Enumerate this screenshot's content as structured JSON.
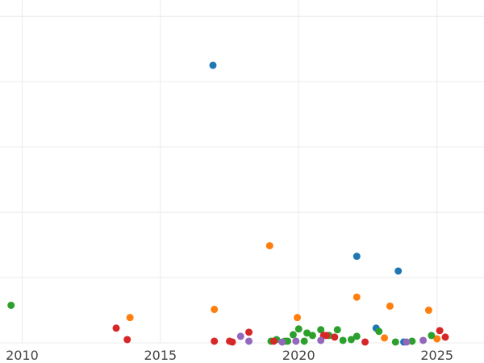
{
  "chart_data": {
    "type": "scatter",
    "title": "",
    "xlabel": "",
    "ylabel": "",
    "xlim": [
      2009.2,
      2026.7
    ],
    "ylim": [
      0,
      420
    ],
    "xticks": [
      2010,
      2015,
      2020,
      2025
    ],
    "ygrid": [
      0,
      80,
      160,
      240,
      320,
      400
    ],
    "grid": true,
    "legend": "none",
    "series": [
      {
        "color": "#1f77b4",
        "points": [
          [
            2016.9,
            340
          ],
          [
            2022.1,
            106
          ],
          [
            2023.6,
            88
          ],
          [
            2022.8,
            18
          ],
          [
            2023.8,
            1
          ]
        ]
      },
      {
        "color": "#ff7f0e",
        "points": [
          [
            2013.9,
            31
          ],
          [
            2016.95,
            41
          ],
          [
            2018.95,
            119
          ],
          [
            2019.95,
            31
          ],
          [
            2022.1,
            56
          ],
          [
            2023.3,
            45
          ],
          [
            2024.7,
            40
          ],
          [
            2023.1,
            6
          ],
          [
            2025.0,
            5
          ]
        ]
      },
      {
        "color": "#2ca02c",
        "points": [
          [
            2009.6,
            46
          ],
          [
            2019.0,
            2
          ],
          [
            2019.2,
            4
          ],
          [
            2019.6,
            2
          ],
          [
            2019.8,
            10
          ],
          [
            2020.0,
            17
          ],
          [
            2020.3,
            12
          ],
          [
            2020.5,
            9
          ],
          [
            2020.8,
            16
          ],
          [
            2021.1,
            9
          ],
          [
            2021.4,
            16
          ],
          [
            2021.6,
            3
          ],
          [
            2021.9,
            4
          ],
          [
            2022.1,
            8
          ],
          [
            2022.9,
            14
          ],
          [
            2023.5,
            1
          ],
          [
            2024.1,
            2
          ],
          [
            2024.8,
            9
          ],
          [
            2020.2,
            2
          ],
          [
            2019.5,
            2
          ]
        ]
      },
      {
        "color": "#d62728",
        "points": [
          [
            2013.4,
            18
          ],
          [
            2013.8,
            4
          ],
          [
            2016.95,
            2
          ],
          [
            2017.5,
            2
          ],
          [
            2017.6,
            1
          ],
          [
            2018.2,
            13
          ],
          [
            2019.1,
            2
          ],
          [
            2020.9,
            9
          ],
          [
            2021.0,
            9
          ],
          [
            2021.3,
            7
          ],
          [
            2022.4,
            1
          ],
          [
            2025.1,
            15
          ],
          [
            2025.3,
            7
          ]
        ]
      },
      {
        "color": "#9467bd",
        "points": [
          [
            2017.9,
            8
          ],
          [
            2018.2,
            2
          ],
          [
            2019.4,
            1
          ],
          [
            2019.9,
            2
          ],
          [
            2020.8,
            3
          ],
          [
            2023.9,
            1
          ],
          [
            2024.5,
            3
          ]
        ]
      }
    ]
  }
}
